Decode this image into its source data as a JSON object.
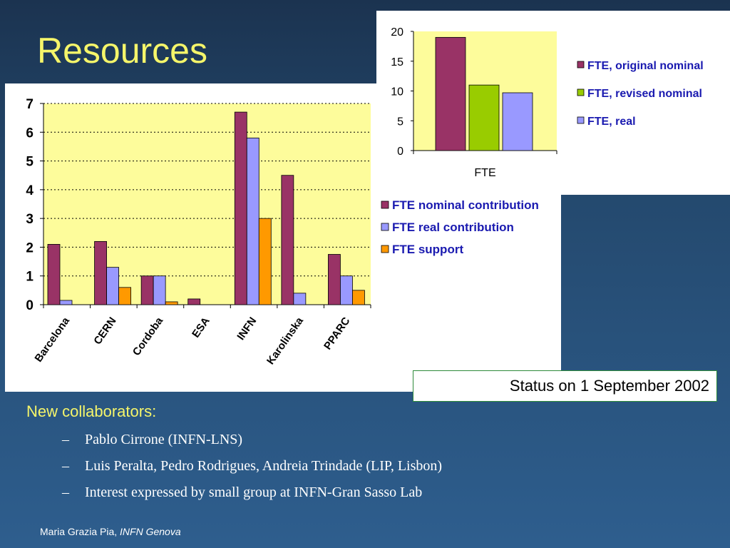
{
  "slide": {
    "title": "Resources",
    "section_heading": "New collaborators:",
    "bullets": [
      "Pablo Cirrone (INFN-LNS)",
      "Luis Peralta, Pedro Rodrigues, Andreia Trindade (LIP, Lisbon)",
      "Interest expressed by small group at INFN-Gran Sasso Lab"
    ],
    "bullet_marker": "–",
    "status": "Status on 1 September 2002",
    "footer_author": "Maria Grazia Pia,",
    "footer_affiliation": "INFN Genova"
  },
  "colors": {
    "plot_background": "#fdfc9b",
    "nominal": "#993366",
    "real": "#9999ff",
    "support": "#ff9900",
    "revised": "#99cc00"
  },
  "chart_data": [
    {
      "type": "bar",
      "categories": [
        "Barcelona",
        "CERN",
        "Cordoba",
        "ESA",
        "INFN",
        "Karolinska",
        "PPARC"
      ],
      "series": [
        {
          "name": "FTE nominal contribution",
          "values": [
            2.1,
            2.2,
            1.0,
            0.2,
            6.7,
            4.5,
            1.75
          ]
        },
        {
          "name": "FTE real contribution",
          "values": [
            0.15,
            1.3,
            1.0,
            0.0,
            5.8,
            0.4,
            1.0
          ]
        },
        {
          "name": "FTE support",
          "values": [
            0.0,
            0.6,
            0.1,
            0.0,
            3.0,
            0.0,
            0.5
          ]
        }
      ],
      "yticks": [
        "0",
        "1",
        "2",
        "3",
        "4",
        "5",
        "6",
        "7"
      ],
      "ylim": [
        0,
        7
      ],
      "grid": "dotted horizontal",
      "legend_position": "right"
    },
    {
      "type": "bar",
      "categories": [
        "FTE"
      ],
      "series": [
        {
          "name": "FTE, original nominal",
          "values": [
            19
          ]
        },
        {
          "name": "FTE, revised nominal",
          "values": [
            11
          ]
        },
        {
          "name": "FTE, real",
          "values": [
            9.7
          ]
        }
      ],
      "yticks": [
        "0",
        "5",
        "10",
        "15",
        "20"
      ],
      "ylim": [
        0,
        20
      ],
      "grid": "none",
      "legend_position": "right"
    }
  ]
}
